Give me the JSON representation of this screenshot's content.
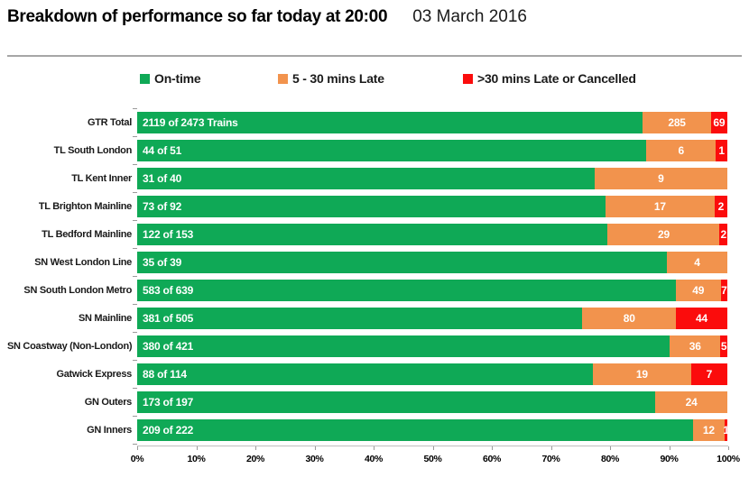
{
  "header": {
    "title": "Breakdown of performance so far today at 20:00",
    "date": "03 March 2016"
  },
  "chart_data": {
    "type": "bar",
    "orientation": "horizontal",
    "stacked": true,
    "title": "Breakdown of performance so far today at 20:00",
    "subtitle": "03 March 2016",
    "legend_position": "top",
    "grid": false,
    "xlim": [
      0,
      100
    ],
    "x_ticks": [
      "0%",
      "10%",
      "20%",
      "30%",
      "40%",
      "50%",
      "60%",
      "70%",
      "80%",
      "90%",
      "100%"
    ],
    "categories": [
      "GTR Total",
      "TL South London",
      "TL Kent Inner",
      "TL Brighton Mainline",
      "TL Bedford Mainline",
      "SN West London Line",
      "SN South London Metro",
      "SN Mainline",
      "SN Coastway (Non-London)",
      "Gatwick Express",
      "GN Outers",
      "GN Inners"
    ],
    "totals": [
      2473,
      51,
      40,
      92,
      153,
      39,
      639,
      505,
      421,
      114,
      197,
      222
    ],
    "bar_labels": [
      "2119 of 2473 Trains",
      "44 of 51",
      "31 of 40",
      "73 of 92",
      "122 of 153",
      "35 of 39",
      "583 of 639",
      "381 of 505",
      "380 of 421",
      "88 of 114",
      "173 of 197",
      "209 of 222"
    ],
    "series": [
      {
        "key": "on-time",
        "name": "On-time",
        "color": "#0fa956",
        "values": [
          2119,
          44,
          31,
          73,
          122,
          35,
          583,
          381,
          380,
          88,
          173,
          209
        ]
      },
      {
        "key": "late-5-30",
        "name": "5 - 30 mins Late",
        "color": "#f2934d",
        "values": [
          285,
          6,
          9,
          17,
          29,
          4,
          49,
          80,
          36,
          19,
          24,
          12
        ]
      },
      {
        "key": "late-30-or-cancelled",
        "name": ">30 mins Late or Cancelled",
        "color": "#fb0c0c",
        "values": [
          69,
          1,
          0,
          2,
          2,
          0,
          7,
          44,
          5,
          7,
          0,
          1
        ]
      }
    ]
  }
}
